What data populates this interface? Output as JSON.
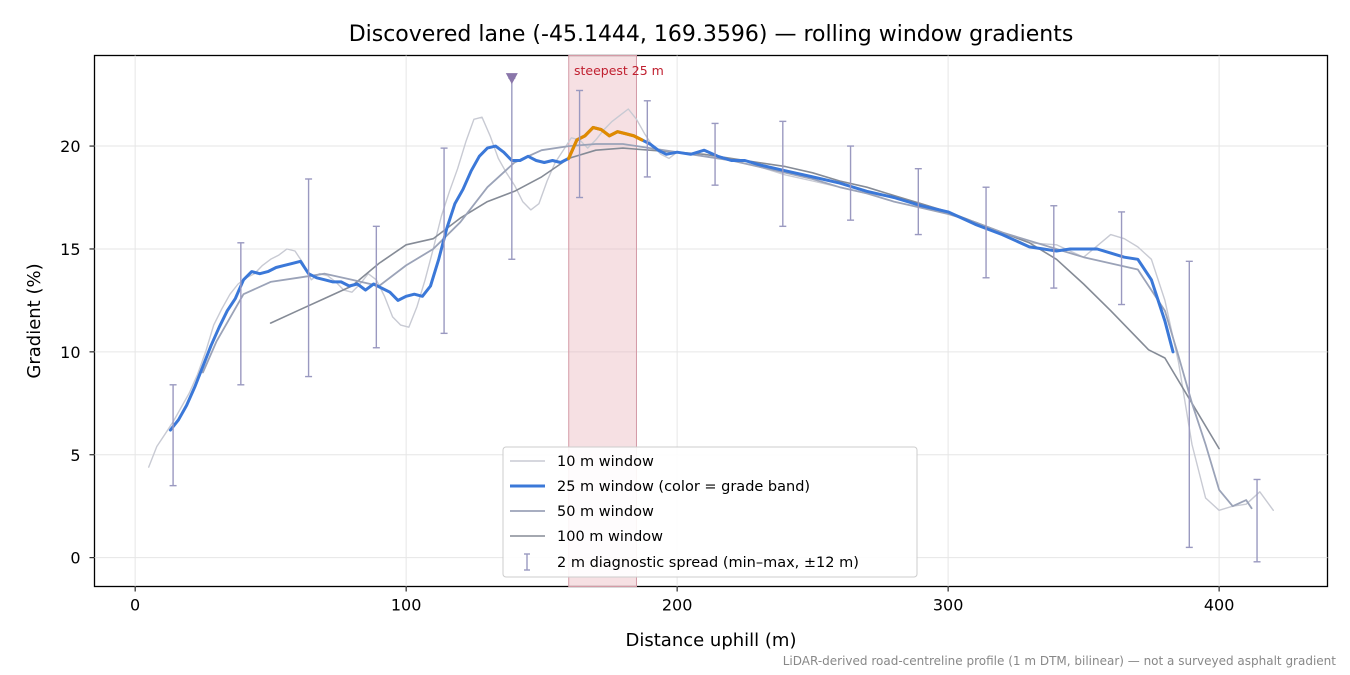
{
  "title": "Discovered lane (-45.1444, 169.3596) — rolling window gradients",
  "footnote": "LiDAR-derived road-centreline profile (1 m DTM, bilinear) — not a surveyed asphalt gradient",
  "annotation": "steepest 25 m",
  "chart_data": {
    "type": "line",
    "title": "Discovered lane (-45.1444, 169.3596) — rolling window gradients",
    "xlabel": "Distance uphill (m)",
    "ylabel": "Gradient (%)",
    "xlim": [
      -15,
      440
    ],
    "ylim": [
      -1.4,
      24.4
    ],
    "xticks": [
      0,
      100,
      200,
      300,
      400
    ],
    "yticks": [
      0,
      5,
      10,
      15,
      20
    ],
    "grid": true,
    "legend_position": "lower center",
    "steepest_window": {
      "label": "steepest 25 m",
      "x_start": 160,
      "x_end": 185
    },
    "peak_marker": {
      "x": 139,
      "y": 23.3
    },
    "series": [
      {
        "name": "10 m window",
        "color": "#c8cad3",
        "x": [
          5,
          8,
          11,
          14,
          17,
          20,
          23,
          26,
          29,
          32,
          35,
          38,
          41,
          44,
          47,
          50,
          53,
          56,
          59,
          62,
          65,
          68,
          71,
          74,
          77,
          80,
          83,
          86,
          89,
          92,
          95,
          98,
          101,
          104,
          107,
          110,
          113,
          116,
          119,
          122,
          125,
          128,
          131,
          134,
          137,
          140,
          143,
          146,
          149,
          152,
          155,
          158,
          161,
          164,
          167,
          170,
          173,
          176,
          179,
          182,
          185,
          188,
          191,
          194,
          197,
          200,
          210,
          220,
          230,
          240,
          250,
          260,
          270,
          280,
          290,
          300,
          310,
          320,
          330,
          340,
          350,
          360,
          365,
          370,
          375,
          380,
          385,
          390,
          395,
          400,
          405,
          410,
          415,
          420
        ],
        "values": [
          4.4,
          5.4,
          6.0,
          6.6,
          7.3,
          8.0,
          8.9,
          10.0,
          11.3,
          12.1,
          12.8,
          13.3,
          13.6,
          13.8,
          14.2,
          14.5,
          14.7,
          15.0,
          14.9,
          14.3,
          13.5,
          13.8,
          13.7,
          13.4,
          13.0,
          12.9,
          13.3,
          13.8,
          13.5,
          12.7,
          11.7,
          11.3,
          11.2,
          12.2,
          13.5,
          15.0,
          16.6,
          17.8,
          18.9,
          20.2,
          21.3,
          21.4,
          20.5,
          19.4,
          18.7,
          18.1,
          17.3,
          16.9,
          17.2,
          18.3,
          19.2,
          19.8,
          20.4,
          20.3,
          19.9,
          20.3,
          20.8,
          21.2,
          21.5,
          21.8,
          21.3,
          20.6,
          20.0,
          19.6,
          19.4,
          19.7,
          19.5,
          19.3,
          19.0,
          18.6,
          18.3,
          18.0,
          17.7,
          17.5,
          17.2,
          16.8,
          16.3,
          15.8,
          15.3,
          15.2,
          14.6,
          15.7,
          15.5,
          15.1,
          14.5,
          12.5,
          9.5,
          5.5,
          2.9,
          2.3,
          2.5,
          2.6,
          3.2,
          2.3
        ]
      },
      {
        "name": "25 m window (color = grade band)",
        "color": "#3b78d8",
        "highlight_color": "#e08a00",
        "highlight_range": [
          160,
          189
        ],
        "x": [
          13,
          16,
          19,
          22,
          25,
          28,
          31,
          34,
          37,
          40,
          43,
          46,
          49,
          52,
          55,
          58,
          61,
          64,
          67,
          70,
          73,
          76,
          79,
          82,
          85,
          88,
          91,
          94,
          97,
          100,
          103,
          106,
          109,
          112,
          115,
          118,
          121,
          124,
          127,
          130,
          133,
          136,
          139,
          142,
          145,
          148,
          151,
          154,
          157,
          160,
          163,
          166,
          169,
          172,
          175,
          178,
          181,
          184,
          187,
          190,
          193,
          196,
          200,
          205,
          210,
          215,
          220,
          225,
          230,
          240,
          250,
          260,
          270,
          280,
          290,
          300,
          310,
          320,
          330,
          340,
          345,
          350,
          355,
          360,
          365,
          370,
          375,
          380,
          383
        ],
        "values": [
          6.2,
          6.7,
          7.4,
          8.3,
          9.3,
          10.3,
          11.2,
          12.0,
          12.6,
          13.5,
          13.9,
          13.8,
          13.9,
          14.1,
          14.2,
          14.3,
          14.4,
          13.8,
          13.6,
          13.5,
          13.4,
          13.4,
          13.2,
          13.3,
          13.0,
          13.3,
          13.1,
          12.9,
          12.5,
          12.7,
          12.8,
          12.7,
          13.2,
          14.5,
          16.0,
          17.2,
          17.9,
          18.8,
          19.5,
          19.9,
          20.0,
          19.7,
          19.3,
          19.3,
          19.5,
          19.3,
          19.2,
          19.3,
          19.2,
          19.4,
          20.3,
          20.5,
          20.9,
          20.8,
          20.5,
          20.7,
          20.6,
          20.5,
          20.3,
          20.1,
          19.8,
          19.6,
          19.7,
          19.6,
          19.8,
          19.5,
          19.3,
          19.3,
          19.1,
          18.8,
          18.5,
          18.2,
          17.8,
          17.5,
          17.1,
          16.8,
          16.2,
          15.7,
          15.1,
          14.9,
          15.0,
          15.0,
          15.0,
          14.8,
          14.6,
          14.5,
          13.5,
          11.5,
          10.0
        ]
      },
      {
        "name": "50 m window",
        "color": "#9ba3b8",
        "x": [
          25,
          30,
          40,
          50,
          60,
          70,
          80,
          90,
          100,
          110,
          120,
          130,
          140,
          150,
          160,
          170,
          180,
          190,
          200,
          210,
          220,
          230,
          240,
          250,
          260,
          270,
          280,
          290,
          300,
          310,
          320,
          330,
          340,
          350,
          360,
          370,
          380,
          385,
          390,
          395,
          400,
          405,
          410,
          412
        ],
        "values": [
          9.0,
          10.5,
          12.8,
          13.4,
          13.6,
          13.8,
          13.5,
          13.2,
          14.2,
          15.0,
          16.3,
          18.0,
          19.2,
          19.8,
          20.0,
          20.1,
          20.1,
          19.9,
          19.7,
          19.5,
          19.3,
          19.0,
          18.7,
          18.4,
          18.0,
          17.7,
          17.3,
          17.0,
          16.7,
          16.3,
          15.8,
          15.4,
          15.0,
          14.6,
          14.3,
          14.0,
          12.0,
          9.8,
          7.5,
          5.5,
          3.3,
          2.5,
          2.8,
          2.4
        ]
      },
      {
        "name": "100 m window",
        "color": "#858b96",
        "x": [
          50,
          60,
          70,
          80,
          90,
          100,
          110,
          120,
          130,
          140,
          150,
          160,
          170,
          180,
          190,
          200,
          210,
          220,
          230,
          240,
          250,
          260,
          270,
          280,
          290,
          300,
          310,
          320,
          330,
          340,
          350,
          360,
          374,
          380,
          390,
          400
        ],
        "values": [
          11.4,
          12.0,
          12.6,
          13.2,
          14.3,
          15.2,
          15.5,
          16.5,
          17.3,
          17.8,
          18.5,
          19.4,
          19.8,
          19.9,
          19.8,
          19.7,
          19.6,
          19.4,
          19.2,
          19.0,
          18.7,
          18.3,
          18.0,
          17.6,
          17.2,
          16.8,
          16.3,
          15.8,
          15.3,
          14.5,
          13.3,
          12.0,
          10.1,
          9.7,
          7.5,
          5.3
        ]
      }
    ],
    "error_bars": {
      "name": "2 m diagnostic spread (min–max, ±12 m)",
      "color": "#9a99c0",
      "points": [
        {
          "x": 14,
          "min": 3.5,
          "max": 8.4
        },
        {
          "x": 39,
          "min": 8.4,
          "max": 15.3
        },
        {
          "x": 64,
          "min": 8.8,
          "max": 18.4
        },
        {
          "x": 89,
          "min": 10.2,
          "max": 16.1
        },
        {
          "x": 114,
          "min": 10.9,
          "max": 19.9
        },
        {
          "x": 139,
          "min": 14.5,
          "max": 23.3
        },
        {
          "x": 164,
          "min": 17.5,
          "max": 22.7
        },
        {
          "x": 189,
          "min": 18.5,
          "max": 22.2
        },
        {
          "x": 214,
          "min": 18.1,
          "max": 21.1
        },
        {
          "x": 239,
          "min": 16.1,
          "max": 21.2
        },
        {
          "x": 264,
          "min": 16.4,
          "max": 20.0
        },
        {
          "x": 289,
          "min": 15.7,
          "max": 18.9
        },
        {
          "x": 314,
          "min": 13.6,
          "max": 18.0
        },
        {
          "x": 339,
          "min": 13.1,
          "max": 17.1
        },
        {
          "x": 364,
          "min": 12.3,
          "max": 16.8
        },
        {
          "x": 389,
          "min": 0.5,
          "max": 14.4
        },
        {
          "x": 414,
          "min": -0.2,
          "max": 3.8
        }
      ]
    }
  }
}
